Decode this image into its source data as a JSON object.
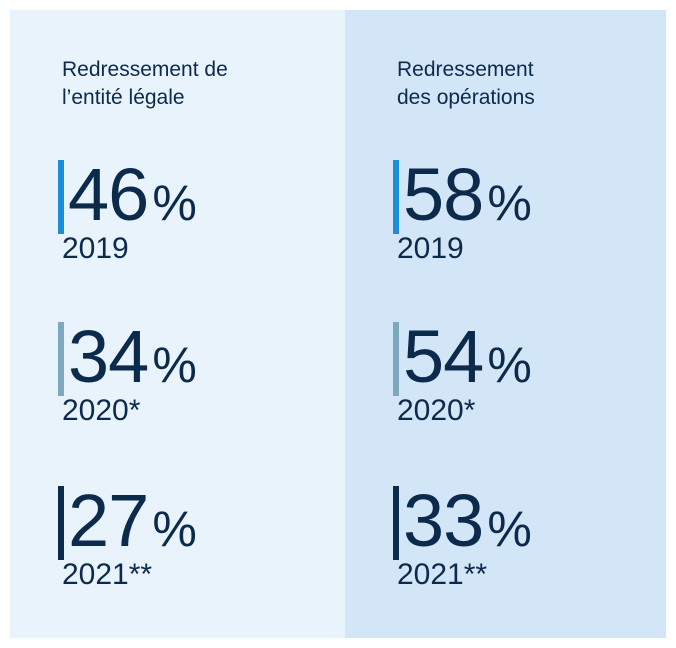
{
  "columns": [
    {
      "title": [
        "Redressement de",
        "l’entité légale"
      ],
      "items": [
        {
          "value": 46,
          "unit": "%",
          "year": "2019",
          "color": "#1a8fd8"
        },
        {
          "value": 34,
          "unit": "%",
          "year": "2020*",
          "color": "#7ea8bf"
        },
        {
          "value": 27,
          "unit": "%",
          "year": "2021**",
          "color": "#0c2a4b"
        }
      ]
    },
    {
      "title": [
        "Redressement",
        "des opérations"
      ],
      "items": [
        {
          "value": 58,
          "unit": "%",
          "year": "2019",
          "color": "#1a8fd8"
        },
        {
          "value": 54,
          "unit": "%",
          "year": "2020*",
          "color": "#7ea8bf"
        },
        {
          "value": 33,
          "unit": "%",
          "year": "2021**",
          "color": "#0c2a4b"
        }
      ]
    }
  ]
}
